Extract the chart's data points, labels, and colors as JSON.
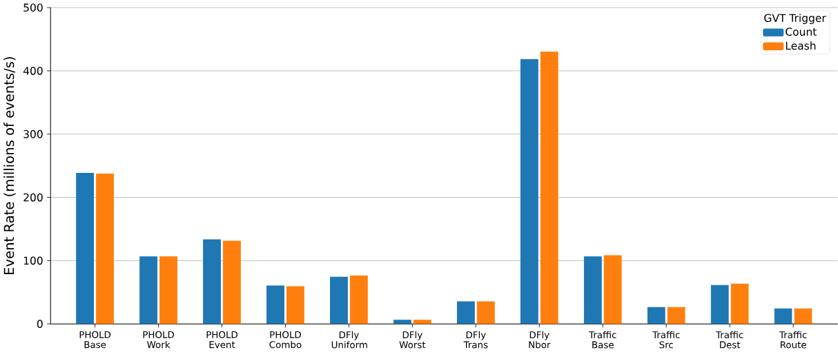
{
  "chart_data": {
    "type": "bar",
    "ylabel": "Event Rate (millions of events/s)",
    "legend_title": "GVT Trigger",
    "categories": [
      "PHOLD Base",
      "PHOLD Work",
      "PHOLD Event",
      "PHOLD Combo",
      "DFly Uniform",
      "DFly Worst",
      "DFly Trans",
      "DFly Nbor",
      "Traffic Base",
      "Traffic Src",
      "Traffic Dest",
      "Traffic Route"
    ],
    "series": [
      {
        "name": "Count",
        "color": "#1f77b4",
        "values": [
          238,
          106,
          133,
          60,
          74,
          6,
          35,
          418,
          106,
          26,
          61,
          24
        ]
      },
      {
        "name": "Leash",
        "color": "#ff7f0e",
        "values": [
          237,
          106,
          131,
          59,
          76,
          6,
          35,
          430,
          108,
          26,
          63,
          24
        ]
      }
    ],
    "ylim": [
      0,
      500
    ],
    "yticks": [
      0,
      100,
      200,
      300,
      400,
      500
    ],
    "grid": "y",
    "legend": "top right"
  }
}
